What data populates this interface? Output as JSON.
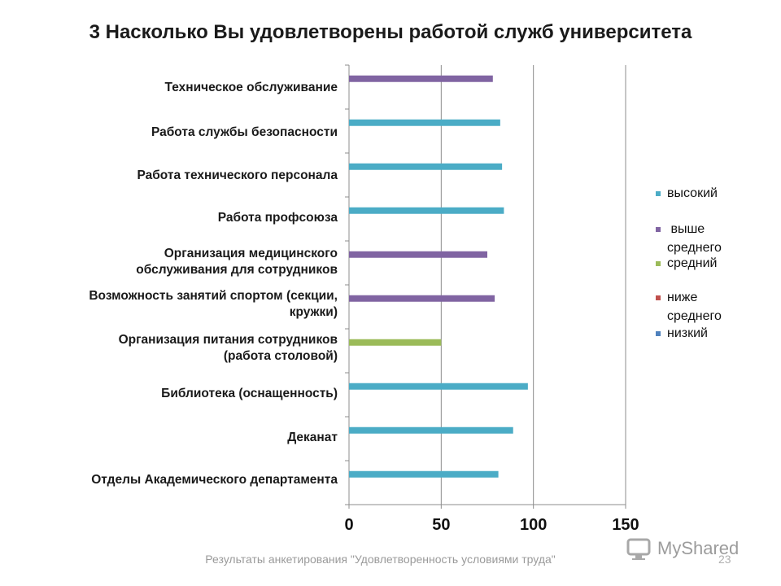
{
  "chart_data": {
    "type": "bar",
    "orientation": "horizontal",
    "title": "3 Насколько Вы удовлетворены работой служб университета",
    "categories": [
      "Техническое  обслуживание",
      "Работа службы безопасности",
      "Работа технического персонала",
      "Работа профсоюза",
      "Организация медицинского\nобслуживания для сотрудников",
      "Возможность занятий спортом (секции,\nкружки)",
      "Организация питания сотрудников\n(работа столовой)",
      "Библиотека (оснащенность)",
      "Деканат",
      "Отделы Академического департамента"
    ],
    "series": [
      {
        "name": "высокий",
        "color": "#4bacc6",
        "values": [
          null,
          82,
          83,
          84,
          null,
          null,
          null,
          97,
          89,
          81
        ]
      },
      {
        "name": "выше среднего",
        "color": "#8064a2",
        "values": [
          78,
          null,
          null,
          null,
          75,
          79,
          null,
          null,
          null,
          null
        ]
      },
      {
        "name": "средний",
        "color": "#9bbb59",
        "values": [
          null,
          null,
          null,
          null,
          null,
          null,
          50,
          null,
          null,
          null
        ]
      },
      {
        "name": "ниже среднего",
        "color": "#c0504d",
        "values": [
          null,
          null,
          null,
          null,
          null,
          null,
          null,
          null,
          null,
          null
        ]
      },
      {
        "name": "низкий",
        "color": "#4f81bd",
        "values": [
          null,
          null,
          null,
          null,
          null,
          null,
          null,
          null,
          null,
          null
        ]
      }
    ],
    "xlim": [
      0,
      150
    ],
    "x_ticks": [
      "0",
      "50",
      "100",
      "150"
    ],
    "grid": "vertical",
    "legend_position": "right"
  },
  "legend": {
    "items": [
      {
        "line1": "высокий",
        "line2": "",
        "color": "#4bacc6"
      },
      {
        "line1": " выше",
        "line2": "среднего",
        "color": "#8064a2"
      },
      {
        "line1": "средний",
        "line2": "",
        "color": "#9bbb59"
      },
      {
        "line1": "ниже",
        "line2": "среднего",
        "color": "#c0504d"
      },
      {
        "line1": "низкий",
        "line2": "",
        "color": "#4f81bd"
      }
    ]
  },
  "footer": {
    "caption": "Результаты анкетирования \"Удовлетворенность условиями труда\"",
    "page": "23"
  },
  "watermark": {
    "text": "MyShared"
  }
}
